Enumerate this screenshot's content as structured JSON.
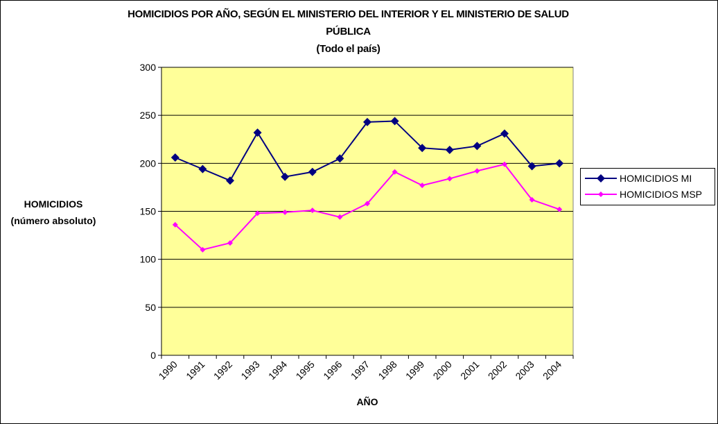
{
  "chart_data": {
    "type": "line",
    "title_lines": [
      "HOMICIDIOS POR AÑO, SEGÚN EL MINISTERIO DEL INTERIOR Y EL MINISTERIO DE SALUD",
      "PÚBLICA",
      "(Todo el país)"
    ],
    "ylabel_lines": [
      "HOMICIDIOS",
      "(número absoluto)"
    ],
    "xlabel": "AÑO",
    "categories": [
      "1990",
      "1991",
      "1992",
      "1993",
      "1994",
      "1995",
      "1996",
      "1997",
      "1998",
      "1999",
      "2000",
      "2001",
      "2002",
      "2003",
      "2004"
    ],
    "ylim": [
      0,
      300
    ],
    "yticks": [
      0,
      50,
      100,
      150,
      200,
      250,
      300
    ],
    "grid": true,
    "legend_position": "right",
    "background_color": "#FFFF99",
    "series": [
      {
        "name": "HOMICIDIOS MI",
        "color": "#000080",
        "marker": "diamond",
        "values": [
          206,
          194,
          182,
          232,
          186,
          191,
          205,
          243,
          244,
          216,
          214,
          218,
          231,
          197,
          200
        ]
      },
      {
        "name": "HOMICIDIOS MSP",
        "color": "#FF00FF",
        "marker": "diamond",
        "values": [
          136,
          110,
          117,
          148,
          149,
          151,
          144,
          158,
          191,
          177,
          184,
          192,
          199,
          162,
          152
        ]
      }
    ]
  }
}
